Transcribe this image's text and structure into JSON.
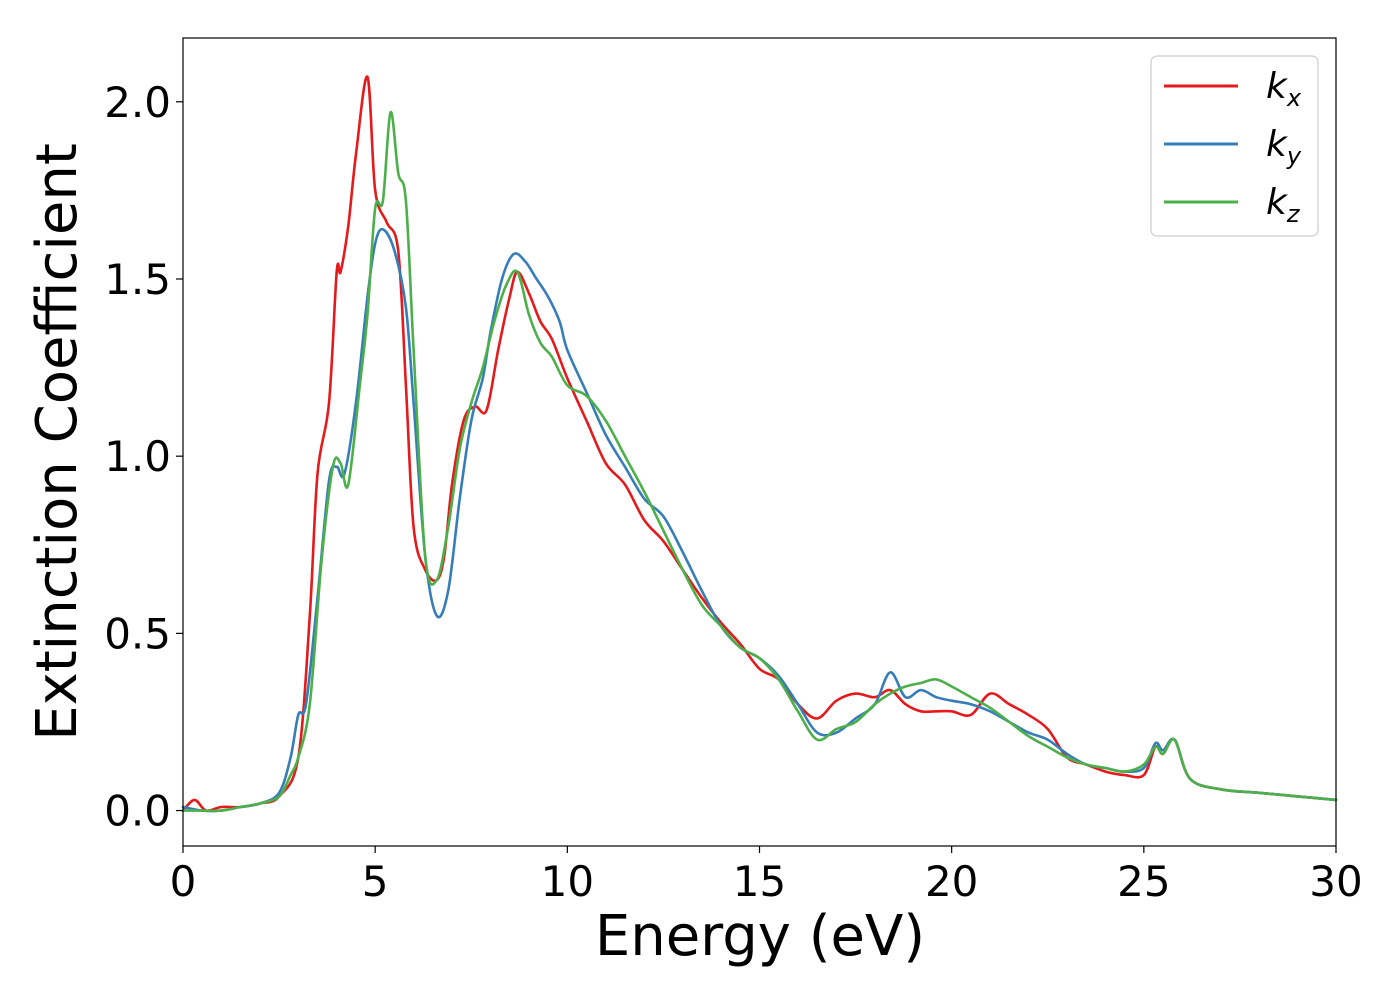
{
  "chart_data": {
    "type": "line",
    "xlabel": "Energy (eV)",
    "ylabel": "Extinction Coefficient",
    "xlim": [
      0,
      30
    ],
    "ylim": [
      -0.1,
      2.18
    ],
    "xticks": [
      "0",
      "5",
      "10",
      "15",
      "20",
      "25",
      "30"
    ],
    "xtick_values": [
      0,
      5,
      10,
      15,
      20,
      25,
      30
    ],
    "yticks": [
      "0.0",
      "0.5",
      "1.0",
      "1.5",
      "2.0"
    ],
    "ytick_values": [
      0,
      0.5,
      1.0,
      1.5,
      2.0
    ],
    "grid": false,
    "legend_position": "top-right",
    "series": [
      {
        "name": "k_x",
        "legend_base": "k",
        "legend_sub": "x",
        "color": "#e41a1c",
        "x": [
          0,
          0.3,
          0.6,
          1.0,
          1.5,
          2.0,
          2.5,
          3.0,
          3.3,
          3.5,
          3.8,
          4.0,
          4.1,
          4.3,
          4.5,
          4.8,
          5.0,
          5.3,
          5.6,
          5.8,
          6.0,
          6.3,
          6.6,
          6.8,
          7.0,
          7.3,
          7.6,
          7.9,
          8.2,
          8.5,
          8.7,
          9.0,
          9.3,
          9.6,
          10.0,
          10.5,
          11.0,
          11.5,
          12.0,
          12.5,
          13.0,
          13.5,
          14.0,
          14.5,
          15.0,
          15.5,
          16.0,
          16.5,
          17.0,
          17.5,
          18.0,
          18.4,
          18.8,
          19.2,
          19.6,
          20.0,
          20.5,
          21.0,
          21.5,
          22.0,
          22.5,
          23.0,
          23.5,
          24.0,
          24.5,
          25.0,
          25.3,
          25.5,
          25.8,
          26.2,
          27.0,
          28.0,
          29.0,
          30.0
        ],
        "y": [
          0.0,
          0.03,
          0.0,
          0.01,
          0.01,
          0.02,
          0.04,
          0.15,
          0.55,
          0.95,
          1.15,
          1.52,
          1.52,
          1.65,
          1.85,
          2.07,
          1.75,
          1.66,
          1.58,
          1.2,
          0.8,
          0.68,
          0.65,
          0.72,
          0.92,
          1.1,
          1.14,
          1.13,
          1.3,
          1.45,
          1.52,
          1.46,
          1.38,
          1.33,
          1.22,
          1.1,
          0.98,
          0.92,
          0.82,
          0.76,
          0.68,
          0.6,
          0.53,
          0.47,
          0.4,
          0.37,
          0.3,
          0.26,
          0.31,
          0.33,
          0.32,
          0.34,
          0.3,
          0.28,
          0.28,
          0.28,
          0.27,
          0.33,
          0.3,
          0.27,
          0.23,
          0.15,
          0.13,
          0.11,
          0.1,
          0.1,
          0.18,
          0.16,
          0.2,
          0.09,
          0.06,
          0.05,
          0.04,
          0.03
        ]
      },
      {
        "name": "k_y",
        "legend_base": "k",
        "legend_sub": "y",
        "color": "#377eb8",
        "x": [
          0,
          0.5,
          1.0,
          1.5,
          2.0,
          2.5,
          2.8,
          3.0,
          3.2,
          3.5,
          3.8,
          4.0,
          4.2,
          4.5,
          4.8,
          5.0,
          5.2,
          5.5,
          5.8,
          6.0,
          6.3,
          6.6,
          6.9,
          7.2,
          7.5,
          7.8,
          8.0,
          8.3,
          8.6,
          8.9,
          9.2,
          9.5,
          9.8,
          10.0,
          10.5,
          11.0,
          11.5,
          12.0,
          12.5,
          13.0,
          13.5,
          14.0,
          14.5,
          15.0,
          15.5,
          16.0,
          16.5,
          17.0,
          17.5,
          18.0,
          18.4,
          18.8,
          19.2,
          19.6,
          20.0,
          20.5,
          21.0,
          21.5,
          22.0,
          22.5,
          23.0,
          23.5,
          24.0,
          24.5,
          25.0,
          25.3,
          25.5,
          25.8,
          26.2,
          27.0,
          28.0,
          29.0,
          30.0
        ],
        "y": [
          0.01,
          0.0,
          0.0,
          0.01,
          0.02,
          0.05,
          0.15,
          0.27,
          0.3,
          0.6,
          0.93,
          0.97,
          0.95,
          1.15,
          1.45,
          1.6,
          1.64,
          1.58,
          1.42,
          1.15,
          0.72,
          0.55,
          0.62,
          0.88,
          1.1,
          1.22,
          1.35,
          1.5,
          1.57,
          1.55,
          1.5,
          1.45,
          1.38,
          1.3,
          1.18,
          1.06,
          0.97,
          0.88,
          0.83,
          0.73,
          0.62,
          0.52,
          0.46,
          0.43,
          0.38,
          0.3,
          0.22,
          0.22,
          0.26,
          0.3,
          0.39,
          0.32,
          0.34,
          0.32,
          0.31,
          0.3,
          0.28,
          0.25,
          0.22,
          0.2,
          0.16,
          0.13,
          0.12,
          0.11,
          0.12,
          0.19,
          0.17,
          0.2,
          0.09,
          0.06,
          0.05,
          0.04,
          0.03
        ]
      },
      {
        "name": "k_z",
        "legend_base": "k",
        "legend_sub": "z",
        "color": "#4daf4a",
        "x": [
          0,
          0.5,
          1.0,
          1.5,
          2.0,
          2.5,
          2.8,
          3.0,
          3.3,
          3.6,
          3.9,
          4.1,
          4.3,
          4.6,
          4.8,
          5.0,
          5.2,
          5.4,
          5.6,
          5.8,
          6.0,
          6.3,
          6.6,
          6.9,
          7.2,
          7.5,
          7.8,
          8.1,
          8.4,
          8.7,
          9.0,
          9.3,
          9.6,
          10.0,
          10.5,
          11.0,
          11.5,
          12.0,
          12.5,
          13.0,
          13.5,
          14.0,
          14.5,
          15.0,
          15.5,
          16.0,
          16.5,
          17.0,
          17.5,
          18.0,
          18.4,
          18.8,
          19.2,
          19.6,
          20.0,
          20.5,
          21.0,
          21.5,
          22.0,
          22.5,
          23.0,
          23.5,
          24.0,
          24.5,
          25.0,
          25.3,
          25.5,
          25.8,
          26.2,
          27.0,
          28.0,
          29.0,
          30.0
        ],
        "y": [
          0.0,
          0.0,
          0.0,
          0.01,
          0.02,
          0.04,
          0.1,
          0.15,
          0.3,
          0.7,
          0.97,
          0.98,
          0.92,
          1.2,
          1.4,
          1.7,
          1.72,
          1.97,
          1.8,
          1.72,
          1.3,
          0.72,
          0.65,
          0.8,
          1.02,
          1.15,
          1.25,
          1.38,
          1.48,
          1.52,
          1.4,
          1.32,
          1.28,
          1.2,
          1.17,
          1.1,
          1.0,
          0.9,
          0.79,
          0.68,
          0.58,
          0.52,
          0.46,
          0.43,
          0.37,
          0.28,
          0.2,
          0.23,
          0.25,
          0.3,
          0.33,
          0.35,
          0.36,
          0.37,
          0.35,
          0.32,
          0.29,
          0.25,
          0.21,
          0.18,
          0.15,
          0.13,
          0.12,
          0.11,
          0.13,
          0.18,
          0.16,
          0.2,
          0.09,
          0.06,
          0.05,
          0.04,
          0.03
        ]
      }
    ]
  }
}
